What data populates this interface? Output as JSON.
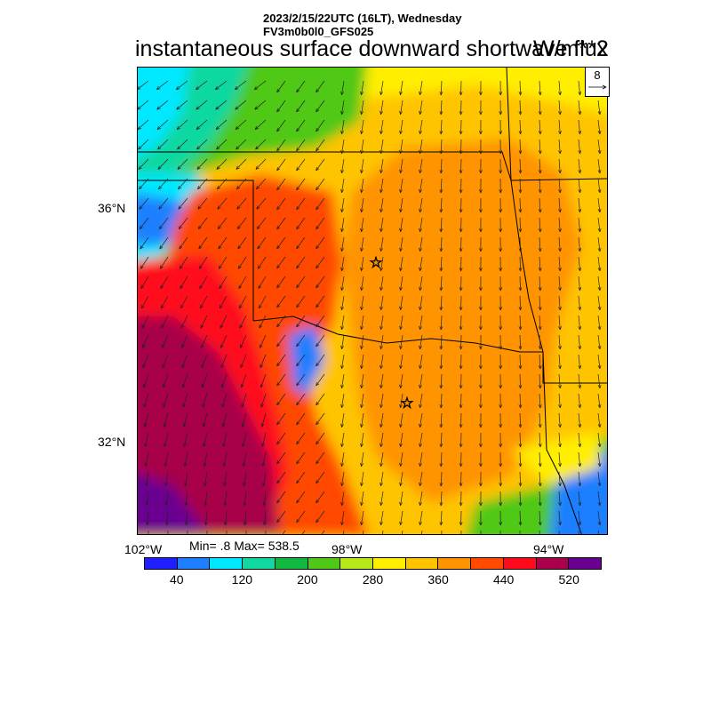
{
  "header": {
    "time_line": "2023/2/15/22UTC (16LT), Wednesday",
    "model_line": "FV3m0b0l0_GFS025",
    "title": "instantaneous surface downward shortwave flux",
    "units": "W/m**2"
  },
  "reference_vector": {
    "value": "8"
  },
  "axes": {
    "lat_labels": [
      "36°N",
      "32°N"
    ],
    "lon_labels": [
      "102°W",
      "98°W",
      "94°W"
    ]
  },
  "stats": {
    "text": "Min= .8 Max= 538.5"
  },
  "colorbar": {
    "colors": [
      "#1f1fff",
      "#1e7fff",
      "#00e8ff",
      "#10d8a0",
      "#10b840",
      "#50c818",
      "#b8e818",
      "#ffee00",
      "#ffc400",
      "#ff9400",
      "#ff4a00",
      "#ff0a1a",
      "#a8004a",
      "#6a0090"
    ],
    "labels": [
      "40",
      "120",
      "200",
      "280",
      "360",
      "440",
      "520"
    ]
  },
  "map": {
    "markers": [
      "star-marker",
      "star-marker"
    ]
  }
}
